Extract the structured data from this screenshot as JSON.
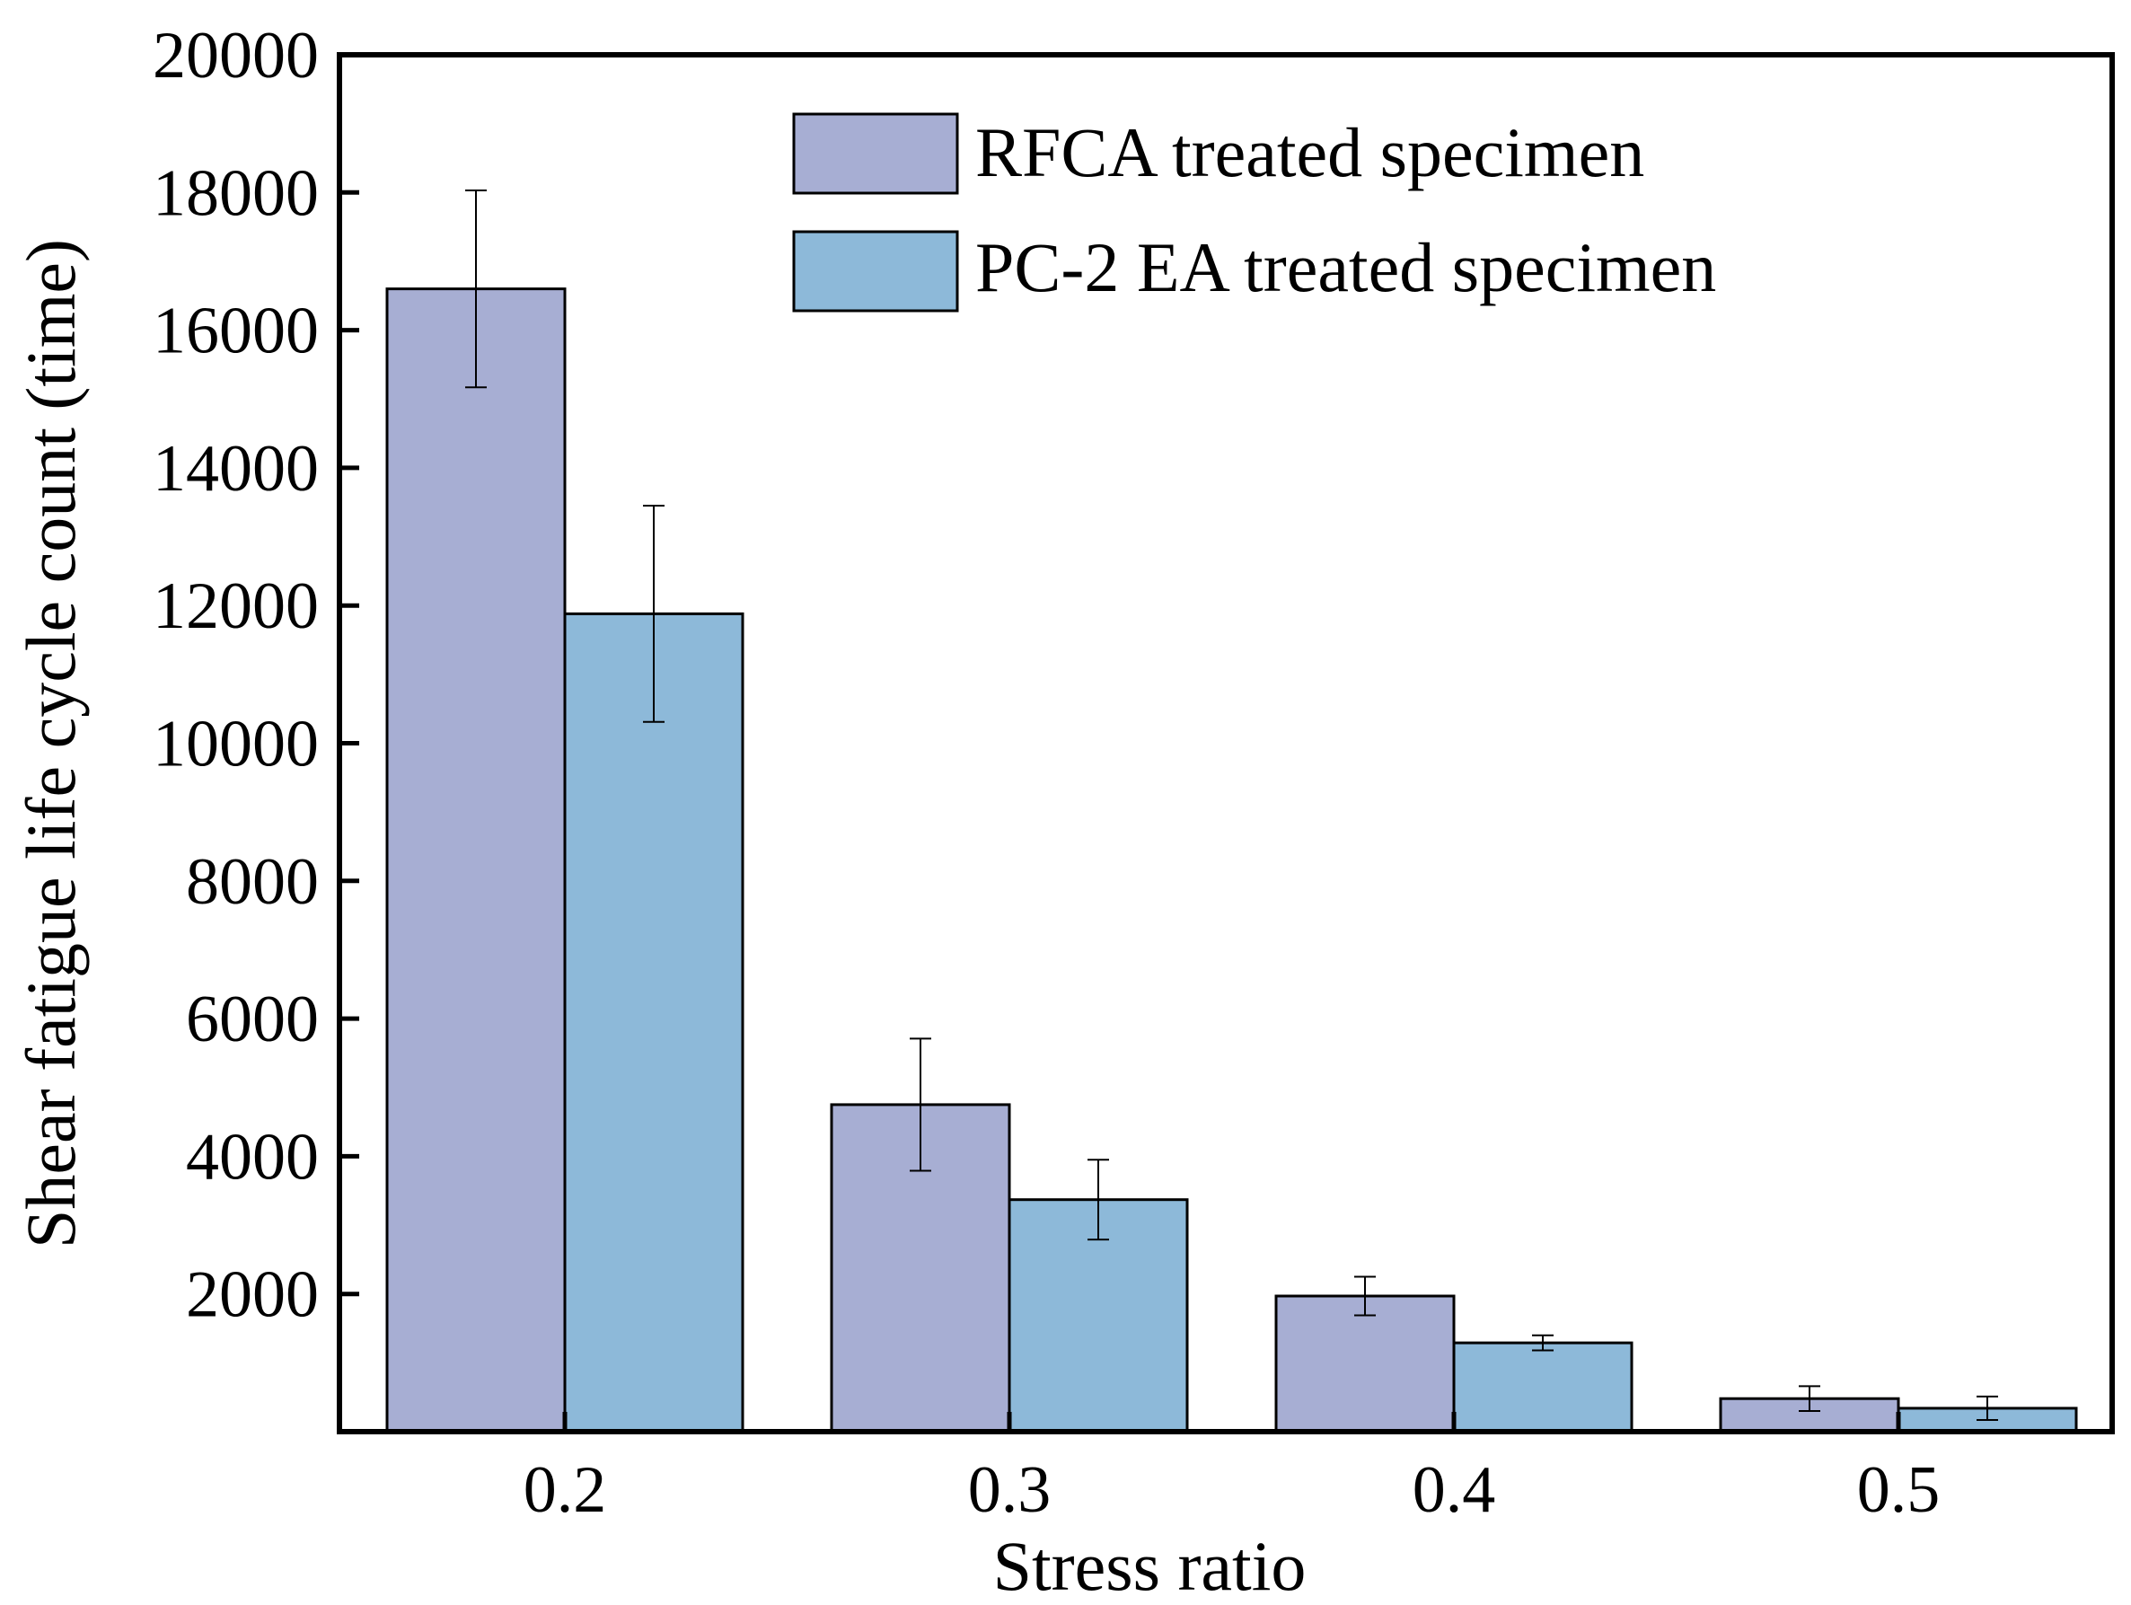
{
  "chart_data": {
    "type": "bar",
    "title": "",
    "xlabel": "Stress ratio",
    "ylabel": "Shear fatigue life cycle count (time)",
    "categories": [
      "0.2",
      "0.3",
      "0.4",
      "0.5"
    ],
    "ylim": [
      0,
      20000
    ],
    "yticks": [
      "2000",
      "4000",
      "6000",
      "8000",
      "10000",
      "12000",
      "14000",
      "16000",
      "18000",
      "20000"
    ],
    "grid": false,
    "legend_position": "top-right",
    "series": [
      {
        "name": "RFCA treated specimen",
        "color": "#a7aed3",
        "values": [
          16600,
          4750,
          1970,
          480
        ],
        "errors": [
          1430,
          960,
          280,
          180
        ]
      },
      {
        "name": "PC-2 EA treated specimen",
        "color": "#8db9d9",
        "values": [
          11880,
          3370,
          1290,
          340
        ],
        "errors": [
          1570,
          580,
          110,
          170
        ]
      }
    ]
  }
}
